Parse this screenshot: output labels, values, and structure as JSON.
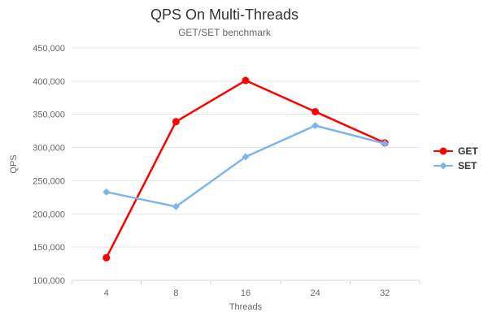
{
  "chart_data": {
    "type": "line",
    "title": "QPS On Multi-Threads",
    "subtitle": "GET/SET benchmark",
    "xlabel": "Threads",
    "ylabel": "QPS",
    "categories": [
      "4",
      "8",
      "16",
      "24",
      "32"
    ],
    "series": [
      {
        "name": "GET",
        "color": "#ff0000",
        "marker": "circle",
        "values": [
          134000,
          339000,
          401000,
          354000,
          307000
        ]
      },
      {
        "name": "SET",
        "color": "#7cb5ec",
        "marker": "diamond",
        "values": [
          233000,
          211000,
          286000,
          333000,
          306000
        ]
      }
    ],
    "ylim": [
      100000,
      450000
    ],
    "ytick_step": 50000,
    "ytick_labels": [
      "100,000",
      "150,000",
      "200,000",
      "250,000",
      "300,000",
      "350,000",
      "400,000",
      "450,000"
    ],
    "grid": true,
    "legend_position": "right"
  },
  "colors": {
    "background": "#ffffff",
    "grid_line": "#e6e6e6",
    "axis_line": "#ccd6eb",
    "tick_label": "#666666",
    "title_text": "#333333",
    "legend_text": "#333333"
  }
}
